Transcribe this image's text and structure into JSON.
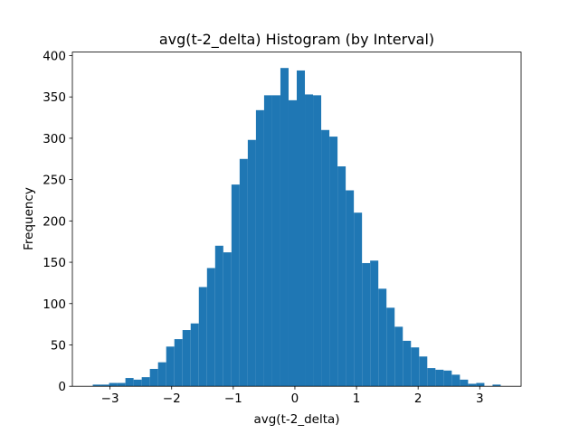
{
  "chart_data": {
    "type": "histogram",
    "title": "avg(t-2_delta) Histogram (by Interval)",
    "x_label": "avg(t-2_delta)",
    "y_label": "Frequency",
    "color": "#1f77b4",
    "bins": [
      -3.28,
      -3.1476,
      -3.0152,
      -2.8828,
      -2.7504,
      -2.618,
      -2.4856,
      -2.3532,
      -2.2208,
      -2.0884,
      -1.956,
      -1.8236,
      -1.6912,
      -1.5588,
      -1.4264,
      -1.294,
      -1.1616,
      -1.0292,
      -0.8968,
      -0.7644,
      -0.632,
      -0.4996,
      -0.3672,
      -0.2348,
      -0.1024,
      0.03,
      0.1624,
      0.2948,
      0.4272,
      0.5596,
      0.692,
      0.8244,
      0.9568,
      1.0892,
      1.2216,
      1.354,
      1.4864,
      1.6188,
      1.7512,
      1.8836,
      2.016,
      2.1484,
      2.2808,
      2.4132,
      2.5456,
      2.678,
      2.8104,
      2.9428,
      3.0752,
      3.2076,
      3.34
    ],
    "values": [
      2,
      2,
      4,
      4,
      10,
      8,
      11,
      21,
      29,
      48,
      57,
      68,
      76,
      120,
      143,
      170,
      162,
      244,
      275,
      298,
      334,
      352,
      352,
      385,
      346,
      382,
      353,
      352,
      310,
      302,
      266,
      237,
      210,
      149,
      152,
      118,
      95,
      72,
      55,
      47,
      36,
      22,
      20,
      19,
      14,
      8,
      3,
      4,
      0,
      2
    ],
    "xlim": [
      -3.611,
      3.671
    ],
    "ylim": [
      0,
      404.25
    ],
    "xticks": [
      {
        "value": -3,
        "label": "−3"
      },
      {
        "value": -2,
        "label": "−2"
      },
      {
        "value": -1,
        "label": "−1"
      },
      0,
      1,
      2,
      3
    ],
    "yticks": [
      0,
      50,
      100,
      150,
      200,
      250,
      300,
      350,
      400
    ]
  }
}
